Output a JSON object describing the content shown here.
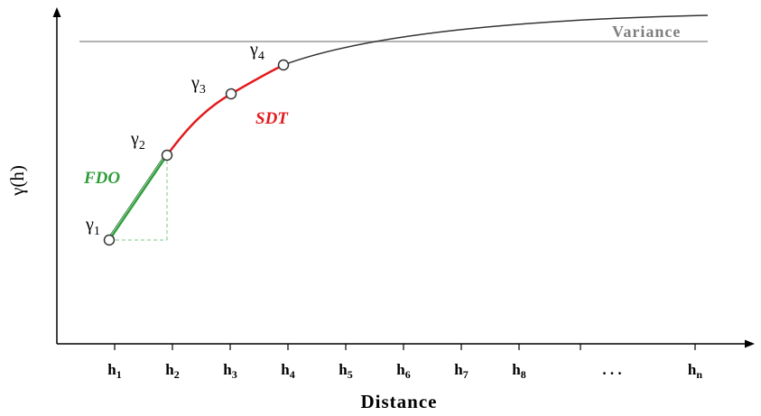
{
  "x_axis": {
    "title": "Distance",
    "ticks": [
      {
        "main": "h",
        "sub": "1"
      },
      {
        "main": "h",
        "sub": "2"
      },
      {
        "main": "h",
        "sub": "3"
      },
      {
        "main": "h",
        "sub": "4"
      },
      {
        "main": "h",
        "sub": "5"
      },
      {
        "main": "h",
        "sub": "6"
      },
      {
        "main": "h",
        "sub": "7"
      },
      {
        "main": "h",
        "sub": "8"
      },
      {
        "main": ". . .",
        "sub": ""
      },
      {
        "main": "h",
        "sub": "n"
      }
    ]
  },
  "y_axis": {
    "title": "γ(h)"
  },
  "variance_label": "Variance",
  "points": [
    {
      "main": "γ",
      "sub": "1"
    },
    {
      "main": "γ",
      "sub": "2"
    },
    {
      "main": "γ",
      "sub": "3"
    },
    {
      "main": "γ",
      "sub": "4"
    }
  ],
  "segments": {
    "fdo_label": "FDO",
    "sdt_label": "SDT"
  },
  "colors": {
    "curve": "#333333",
    "variance_line": "#9a9a9a",
    "sdt": "#e31a1c",
    "fdo": "#2e9e3a",
    "point_fill": "#ffffff",
    "point_stroke": "#333333"
  }
}
